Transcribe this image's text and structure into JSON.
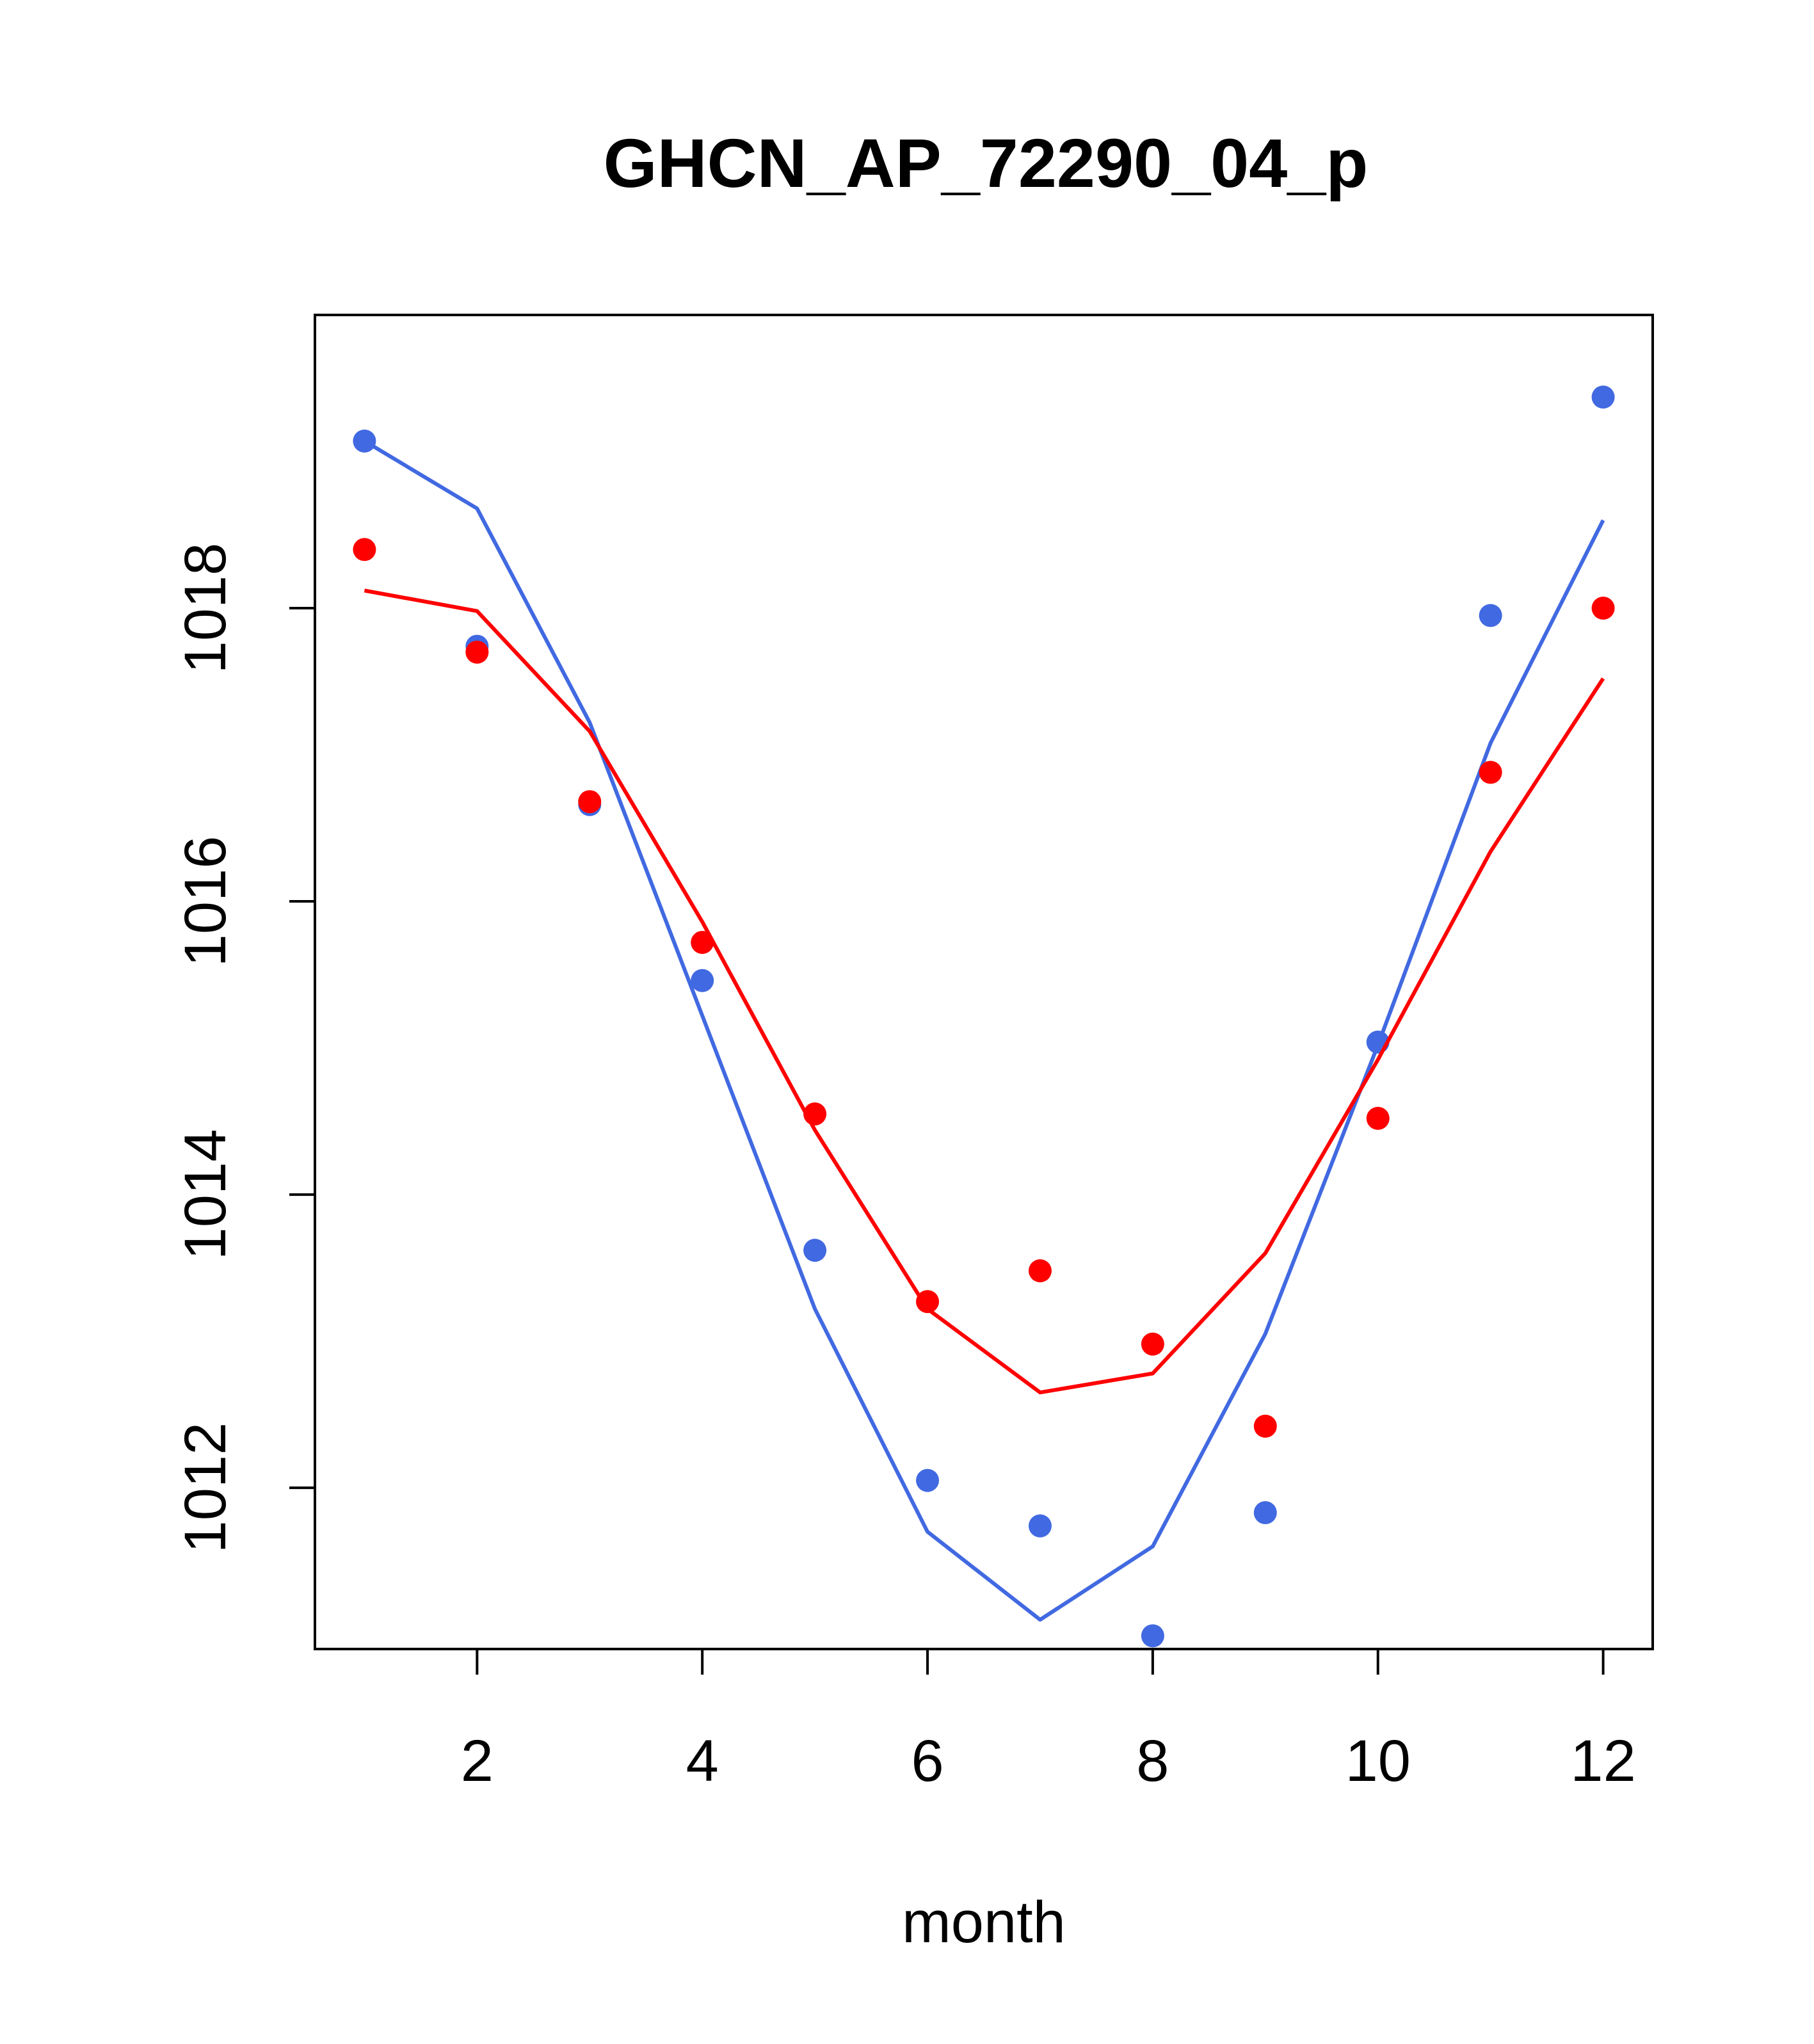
{
  "chart_data": {
    "type": "line",
    "title": "GHCN_AP_72290_04_p",
    "xlabel": "month",
    "ylabel": "",
    "xlim": [
      0.56,
      12.44
    ],
    "ylim": [
      1010.9,
      1020.0
    ],
    "xticks": [
      2,
      4,
      6,
      8,
      10,
      12
    ],
    "yticks": [
      1012,
      1014,
      1016,
      1018
    ],
    "grid": false,
    "legend": "none",
    "x": [
      1,
      2,
      3,
      4,
      5,
      6,
      7,
      8,
      9,
      10,
      11,
      12
    ],
    "series": [
      {
        "color": "#4169E1",
        "points": [
          1019.14,
          1017.74,
          1016.66,
          1015.46,
          1013.62,
          1012.05,
          1011.74,
          1010.99,
          1011.83,
          1015.04,
          1017.95,
          1019.44
        ],
        "line": [
          1019.14,
          1018.68,
          1017.22,
          1015.22,
          1013.22,
          1011.7,
          1011.1,
          1011.6,
          1013.05,
          1015.02,
          1017.08,
          1018.6
        ]
      },
      {
        "color": "#FF0000",
        "points": [
          1018.4,
          1017.7,
          1016.68,
          1015.72,
          1014.55,
          1013.27,
          1013.48,
          1012.98,
          1012.42,
          1014.52,
          1016.88,
          1018.0
        ],
        "line": [
          1018.12,
          1017.98,
          1017.16,
          1015.86,
          1014.44,
          1013.22,
          1012.65,
          1012.78,
          1013.6,
          1014.92,
          1016.34,
          1017.52
        ]
      }
    ]
  }
}
